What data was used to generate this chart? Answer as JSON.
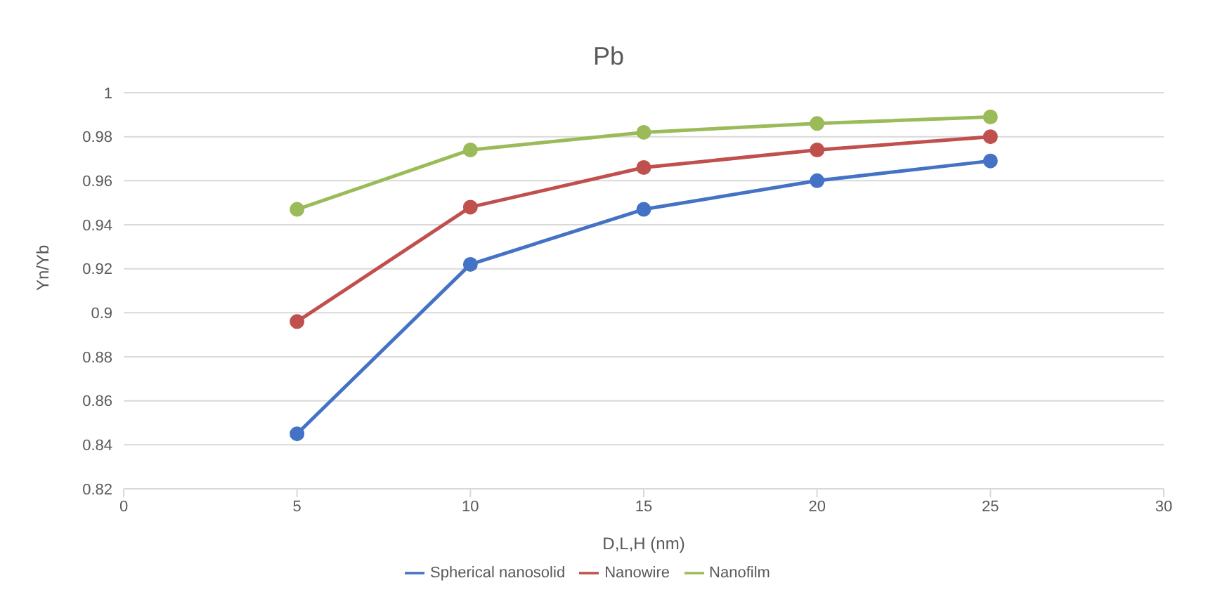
{
  "chart_data": {
    "type": "line",
    "title": "Pb",
    "xlabel": "D,L,H (nm)",
    "ylabel": "Yn/Yb",
    "x": [
      5,
      10,
      15,
      20,
      25
    ],
    "series": [
      {
        "name": "Spherical nanosolid",
        "color": "#4472c4",
        "values": [
          0.845,
          0.922,
          0.947,
          0.96,
          0.969
        ]
      },
      {
        "name": "Nanowire",
        "color": "#c0504d",
        "values": [
          0.896,
          0.948,
          0.966,
          0.974,
          0.98
        ]
      },
      {
        "name": "Nanofilm",
        "color": "#9bbb59",
        "values": [
          0.947,
          0.974,
          0.982,
          0.986,
          0.989
        ]
      }
    ],
    "xlim": [
      0,
      30
    ],
    "xticks": [
      0,
      5,
      10,
      15,
      20,
      25,
      30
    ],
    "ylim": [
      0.82,
      1
    ],
    "yticks": [
      0.82,
      0.84,
      0.86,
      0.88,
      0.9,
      0.92,
      0.94,
      0.96,
      0.98,
      1
    ],
    "grid": "y",
    "legend": "bottom",
    "marker": "circle",
    "line_style": "solid"
  }
}
